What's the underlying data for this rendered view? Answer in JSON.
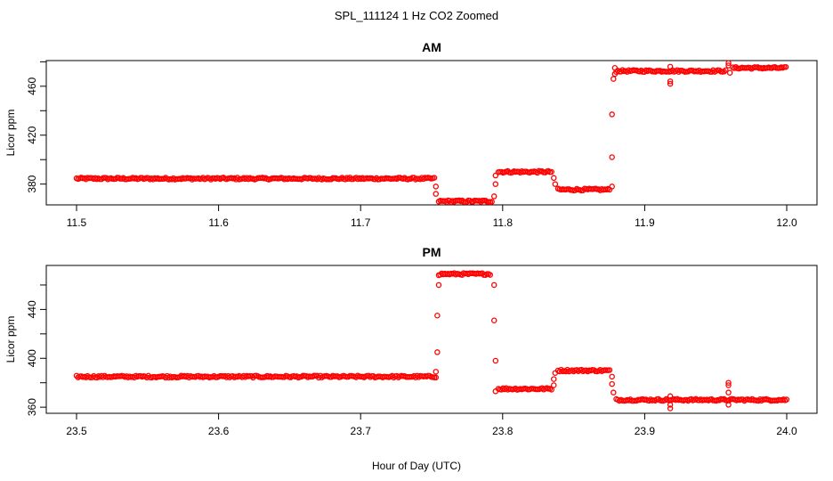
{
  "title": "SPL_111124  1 Hz CO2 Zoomed",
  "xlabel": "Hour of Day (UTC)",
  "colors": {
    "marker": "#ff0000",
    "axis": "#000000",
    "background": "#ffffff"
  },
  "chart_data": [
    {
      "type": "scatter",
      "title": "AM",
      "ylabel": "Licor ppm",
      "xlim": [
        11.5,
        12.0
      ],
      "ylim": [
        363,
        481
      ],
      "x_ticks": [
        11.5,
        11.6,
        11.7,
        11.8,
        11.9,
        12.0
      ],
      "x_tick_labels": [
        "11.5",
        "11.6",
        "11.7",
        "11.8",
        "11.9",
        "12.0"
      ],
      "y_ticks": [
        380,
        420,
        460
      ],
      "y_tick_labels": [
        "380",
        "420",
        "460"
      ],
      "marker": "open-circle",
      "grid": false,
      "segments": [
        {
          "x": [
            11.5,
            11.752
          ],
          "y": 384.5
        },
        {
          "x": [
            11.755,
            11.793
          ],
          "y": 366
        },
        {
          "x": [
            11.797,
            11.835
          ],
          "y": 390
        },
        {
          "x": [
            11.839,
            11.876
          ],
          "y": 375.5
        },
        {
          "x": [
            11.88,
            11.958
          ],
          "y": 472.5
        },
        {
          "x": [
            11.962,
            12.0
          ],
          "y": 475
        }
      ],
      "transition_points": [
        {
          "x": 11.753,
          "y": 378
        },
        {
          "x": 11.753,
          "y": 372
        },
        {
          "x": 11.794,
          "y": 370
        },
        {
          "x": 11.795,
          "y": 380
        },
        {
          "x": 11.795,
          "y": 387
        },
        {
          "x": 11.836,
          "y": 385
        },
        {
          "x": 11.837,
          "y": 380
        },
        {
          "x": 11.877,
          "y": 378
        },
        {
          "x": 11.877,
          "y": 402
        },
        {
          "x": 11.877,
          "y": 437
        },
        {
          "x": 11.878,
          "y": 466
        },
        {
          "x": 11.879,
          "y": 470
        },
        {
          "x": 11.879,
          "y": 475
        },
        {
          "x": 11.918,
          "y": 462
        },
        {
          "x": 11.918,
          "y": 464
        },
        {
          "x": 11.918,
          "y": 476
        },
        {
          "x": 11.959,
          "y": 479
        },
        {
          "x": 11.959,
          "y": 477
        },
        {
          "x": 11.96,
          "y": 471
        }
      ]
    },
    {
      "type": "scatter",
      "title": "PM",
      "ylabel": "Licor ppm",
      "xlim": [
        23.5,
        24.0
      ],
      "ylim": [
        355,
        476
      ],
      "x_ticks": [
        23.5,
        23.6,
        23.7,
        23.8,
        23.9,
        24.0
      ],
      "x_tick_labels": [
        "23.5",
        "23.6",
        "23.7",
        "23.8",
        "23.9",
        "24.0"
      ],
      "y_ticks": [
        360,
        400,
        440
      ],
      "y_tick_labels": [
        "360",
        "400",
        "440"
      ],
      "marker": "open-circle",
      "grid": false,
      "segments": [
        {
          "x": [
            23.5,
            23.753
          ],
          "y": 385
        },
        {
          "x": [
            23.756,
            23.792
          ],
          "y": 469
        },
        {
          "x": [
            23.797,
            23.835
          ],
          "y": 375
        },
        {
          "x": [
            23.839,
            23.876
          ],
          "y": 390
        },
        {
          "x": [
            23.88,
            24.0
          ],
          "y": 366
        }
      ],
      "transition_points": [
        {
          "x": 23.753,
          "y": 389
        },
        {
          "x": 23.754,
          "y": 405
        },
        {
          "x": 23.754,
          "y": 435
        },
        {
          "x": 23.755,
          "y": 460
        },
        {
          "x": 23.755,
          "y": 468
        },
        {
          "x": 23.794,
          "y": 460
        },
        {
          "x": 23.794,
          "y": 431
        },
        {
          "x": 23.795,
          "y": 398
        },
        {
          "x": 23.795,
          "y": 373
        },
        {
          "x": 23.836,
          "y": 378
        },
        {
          "x": 23.836,
          "y": 383
        },
        {
          "x": 23.837,
          "y": 388
        },
        {
          "x": 23.877,
          "y": 385
        },
        {
          "x": 23.877,
          "y": 379
        },
        {
          "x": 23.878,
          "y": 372
        },
        {
          "x": 23.918,
          "y": 359
        },
        {
          "x": 23.918,
          "y": 362
        },
        {
          "x": 23.918,
          "y": 369
        },
        {
          "x": 23.959,
          "y": 380
        },
        {
          "x": 23.959,
          "y": 378
        },
        {
          "x": 23.959,
          "y": 372
        },
        {
          "x": 23.959,
          "y": 362
        }
      ]
    }
  ]
}
